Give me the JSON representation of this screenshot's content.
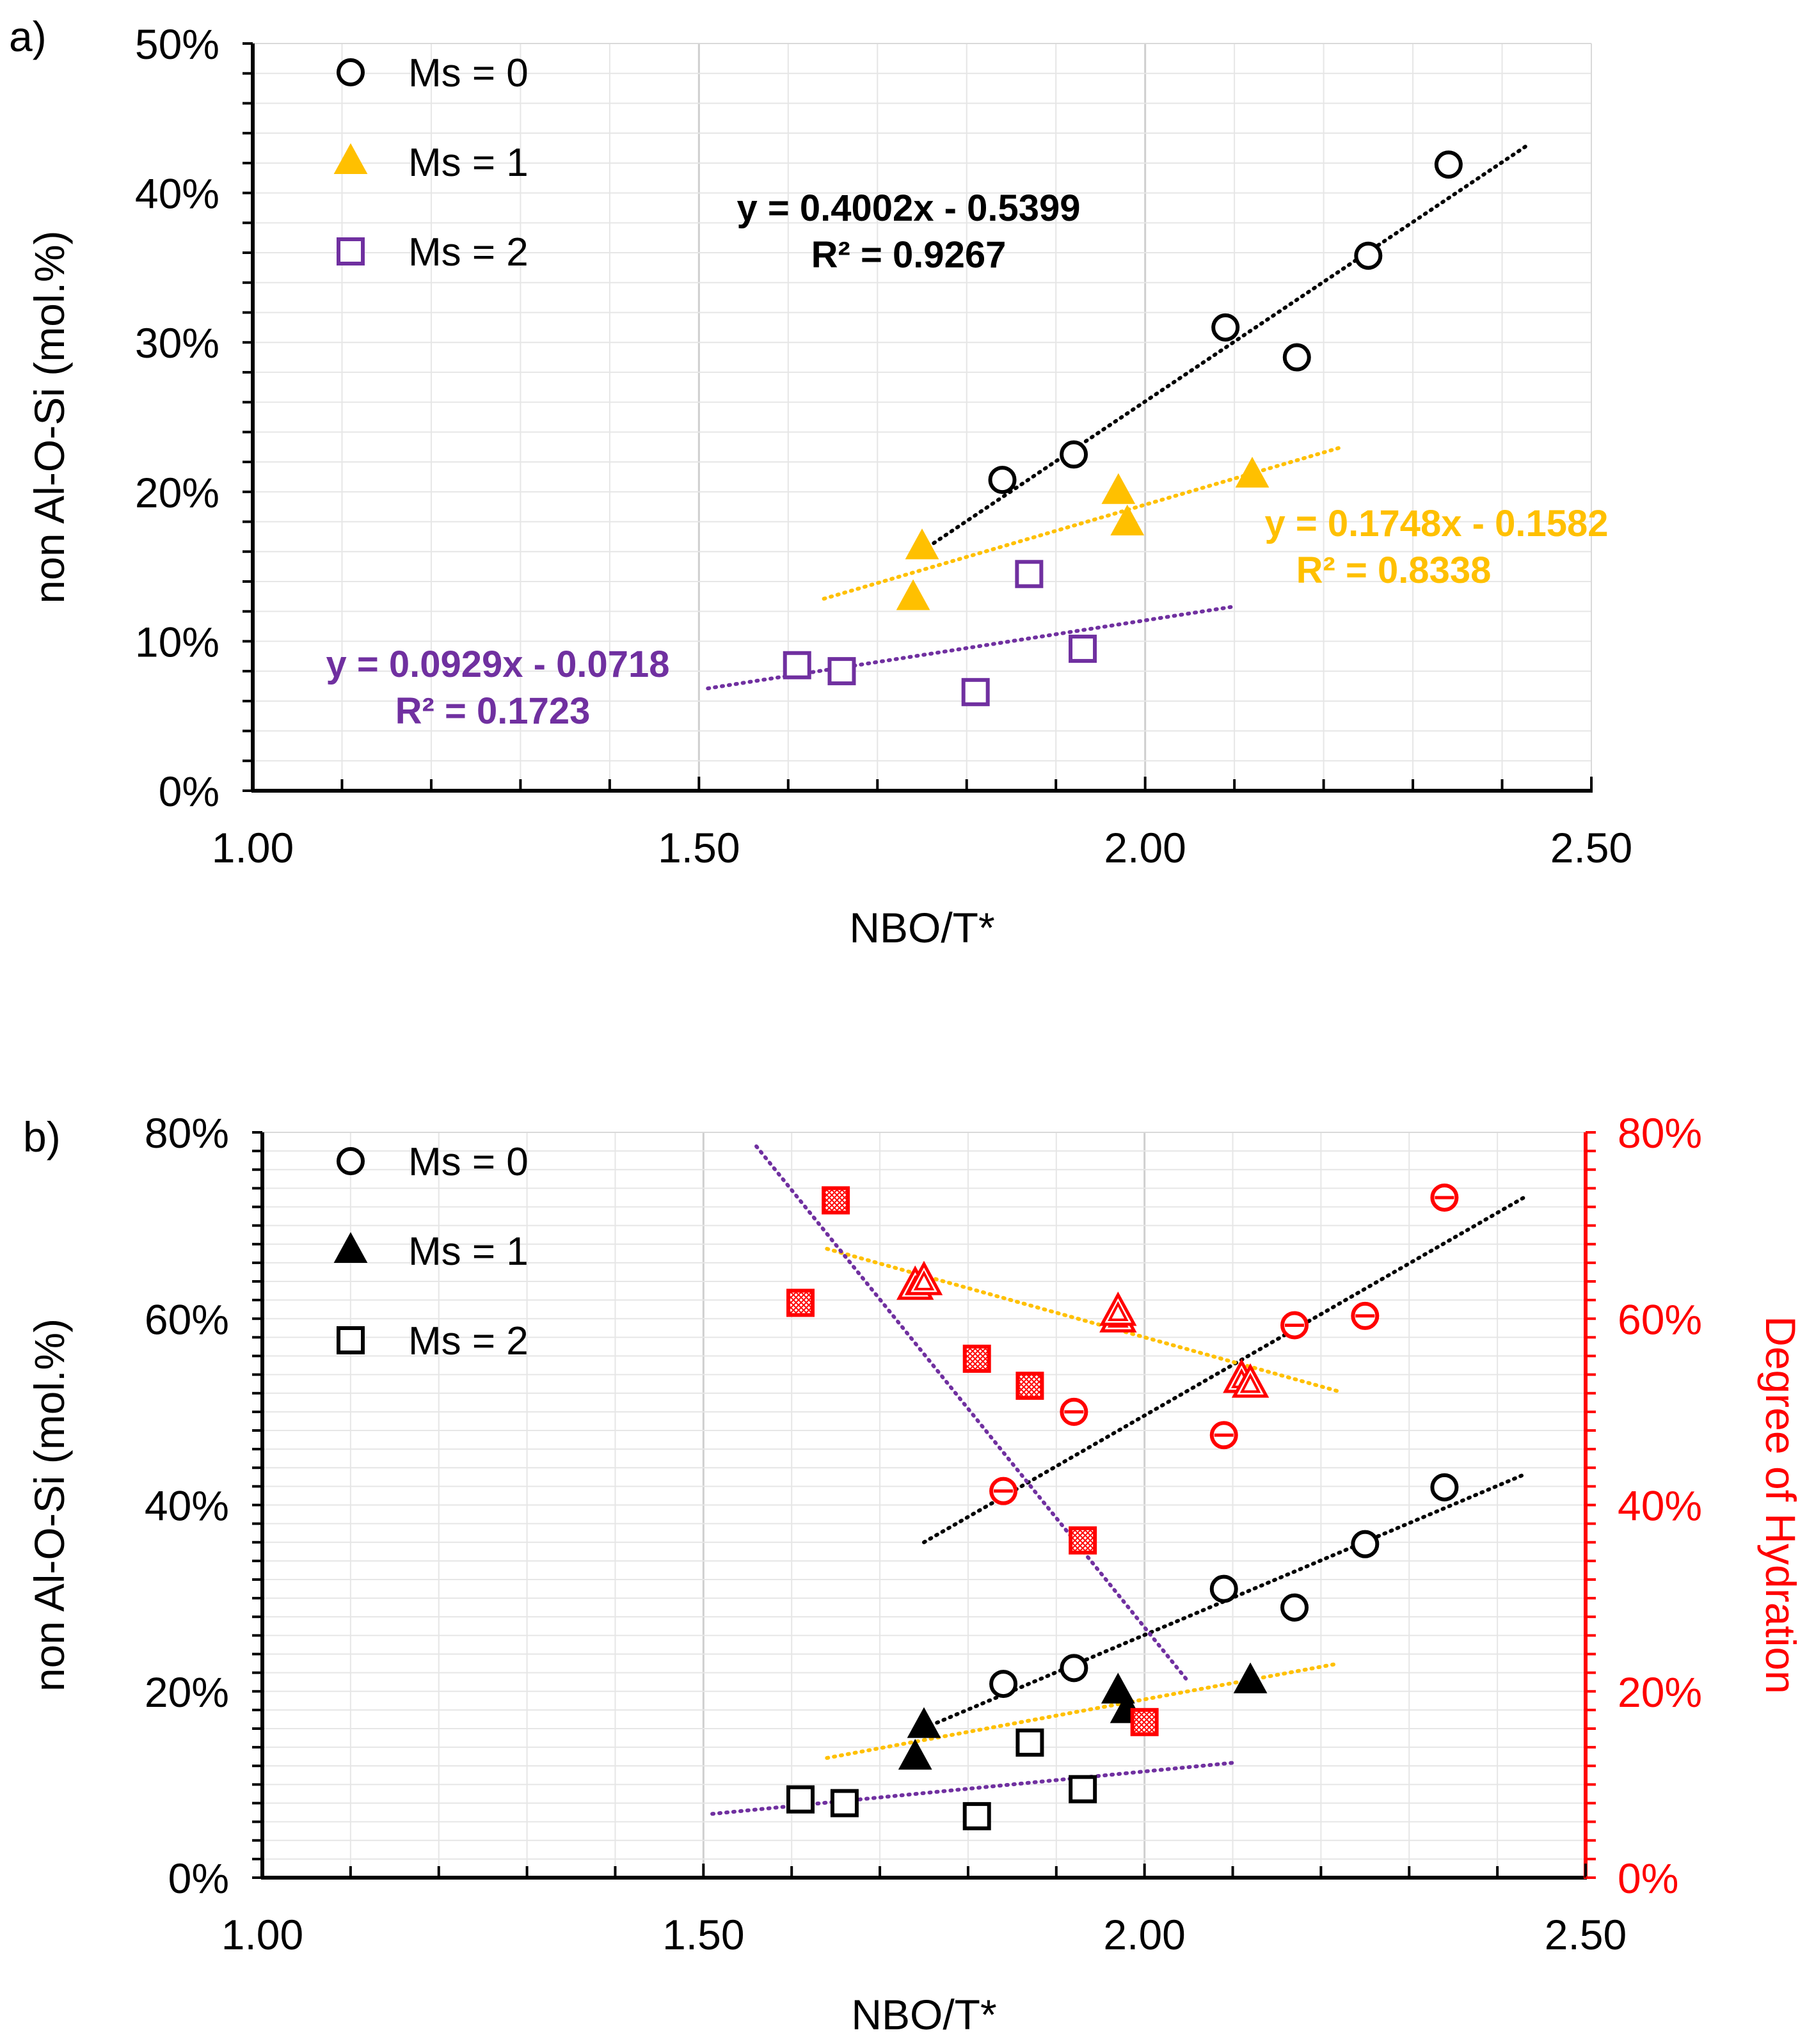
{
  "chart_data": [
    {
      "panel": "a)",
      "type": "scatter",
      "xlabel": "NBO/T*",
      "ylabel": "non Al-O-Si (mol.%)",
      "xlim": [
        1.0,
        2.5
      ],
      "ylim": [
        0,
        0.5
      ],
      "x_ticks": [
        "1.00",
        "1.50",
        "2.00",
        "2.50"
      ],
      "y_ticks": [
        "0%",
        "10%",
        "20%",
        "30%",
        "40%",
        "50%"
      ],
      "grid": true,
      "legend": "top-left",
      "series": [
        {
          "name": "Ms = 0",
          "marker": "circle",
          "color": "#000000",
          "fill": "none",
          "points": [
            [
              1.84,
              0.208
            ],
            [
              1.92,
              0.225
            ],
            [
              2.09,
              0.31
            ],
            [
              2.17,
              0.29
            ],
            [
              2.25,
              0.358
            ],
            [
              2.34,
              0.419
            ]
          ]
        },
        {
          "name": "Ms = 1",
          "marker": "triangle",
          "color": "#FFC000",
          "fill": "#FFC000",
          "points": [
            [
              1.75,
              0.163
            ],
            [
              1.74,
              0.129
            ],
            [
              1.97,
              0.2
            ],
            [
              1.98,
              0.179
            ],
            [
              2.12,
              0.211
            ]
          ]
        },
        {
          "name": "Ms = 2",
          "marker": "square",
          "color": "#7030A0",
          "fill": "none",
          "points": [
            [
              1.61,
              0.084
            ],
            [
              1.66,
              0.08
            ],
            [
              1.81,
              0.066
            ],
            [
              1.87,
              0.145
            ],
            [
              1.93,
              0.095
            ]
          ]
        }
      ],
      "trendlines": [
        {
          "series": "Ms = 0",
          "color": "#000000",
          "x_range": [
            1.75,
            2.43
          ],
          "slope": 0.4002,
          "intercept": -0.5399,
          "equation": "y = 0.4002x - 0.5399",
          "r2": "R² = 0.9267"
        },
        {
          "series": "Ms = 1",
          "color": "#FFC000",
          "x_range": [
            1.64,
            2.22
          ],
          "slope": 0.1748,
          "intercept": -0.1582,
          "equation": "y = 0.1748x - 0.1582",
          "r2": "R² = 0.8338"
        },
        {
          "series": "Ms = 2",
          "color": "#7030A0",
          "x_range": [
            1.51,
            2.1
          ],
          "slope": 0.0929,
          "intercept": -0.0718,
          "equation": "y = 0.0929x - 0.0718",
          "r2": "R² = 0.1723"
        }
      ]
    },
    {
      "panel": "b)",
      "type": "scatter",
      "xlabel": "NBO/T*",
      "ylabel": "non Al-O-Si (mol.%)",
      "y2label": "Degree of Hydration",
      "xlim": [
        1.0,
        2.5
      ],
      "ylim": [
        0,
        0.8
      ],
      "y2lim": [
        0,
        0.8
      ],
      "x_ticks": [
        "1.00",
        "1.50",
        "2.00",
        "2.50"
      ],
      "y_ticks": [
        "0%",
        "20%",
        "40%",
        "60%",
        "80%"
      ],
      "y2_ticks": [
        "0%",
        "20%",
        "40%",
        "60%",
        "80%"
      ],
      "grid": true,
      "legend": "top-left",
      "series": [
        {
          "name": "Ms = 0",
          "marker": "circle",
          "color": "#000000",
          "fill": "none",
          "axis": "left",
          "points": [
            [
              1.84,
              0.208
            ],
            [
              1.92,
              0.225
            ],
            [
              2.09,
              0.31
            ],
            [
              2.17,
              0.29
            ],
            [
              2.25,
              0.358
            ],
            [
              2.34,
              0.419
            ]
          ]
        },
        {
          "name": "Ms = 1",
          "marker": "triangle",
          "color": "#000000",
          "fill": "#000000",
          "axis": "left",
          "points": [
            [
              1.75,
              0.163
            ],
            [
              1.74,
              0.129
            ],
            [
              1.97,
              0.2
            ],
            [
              1.98,
              0.179
            ],
            [
              2.12,
              0.211
            ]
          ]
        },
        {
          "name": "Ms = 2",
          "marker": "square",
          "color": "#000000",
          "fill": "none",
          "axis": "left",
          "points": [
            [
              1.61,
              0.084
            ],
            [
              1.66,
              0.08
            ],
            [
              1.81,
              0.066
            ],
            [
              1.87,
              0.145
            ],
            [
              1.93,
              0.095
            ]
          ]
        },
        {
          "name": "Ms = 0 hydration",
          "marker": "circle-bar",
          "color": "#FF0000",
          "axis": "right",
          "legend": false,
          "points": [
            [
              1.84,
              0.415
            ],
            [
              1.92,
              0.5
            ],
            [
              2.09,
              0.475
            ],
            [
              2.17,
              0.593
            ],
            [
              2.25,
              0.603
            ],
            [
              2.34,
              0.73
            ]
          ]
        },
        {
          "name": "Ms = 1 hydration",
          "marker": "triangle-double",
          "color": "#FF0000",
          "axis": "right",
          "legend": false,
          "points": [
            [
              1.74,
              0.635
            ],
            [
              1.75,
              0.64
            ],
            [
              1.97,
              0.6
            ],
            [
              1.97,
              0.607
            ],
            [
              2.11,
              0.535
            ],
            [
              2.12,
              0.53
            ]
          ]
        },
        {
          "name": "Ms = 2 hydration",
          "marker": "square-hatched",
          "color": "#FF0000",
          "axis": "right",
          "legend": false,
          "points": [
            [
              1.61,
              0.617
            ],
            [
              1.65,
              0.727
            ],
            [
              1.81,
              0.557
            ],
            [
              1.87,
              0.528
            ],
            [
              1.93,
              0.362
            ],
            [
              2.0,
              0.167
            ]
          ]
        }
      ],
      "trendlines": [
        {
          "series": "Ms = 0",
          "color": "#000000",
          "axis": "left",
          "x_range": [
            1.75,
            2.43
          ],
          "slope": 0.4002,
          "intercept": -0.5399
        },
        {
          "series": "Ms = 1",
          "color": "#FFC000",
          "axis": "left",
          "x_range": [
            1.64,
            2.22
          ],
          "slope": 0.1748,
          "intercept": -0.1582
        },
        {
          "series": "Ms = 2",
          "color": "#7030A0",
          "axis": "left",
          "x_range": [
            1.51,
            2.1
          ],
          "slope": 0.0929,
          "intercept": -0.0718
        },
        {
          "series": "Ms = 0 hydration",
          "color": "#000000",
          "axis": "right",
          "x_range": [
            1.75,
            2.43
          ],
          "y_range": [
            0.36,
            0.73
          ]
        },
        {
          "series": "Ms = 1 hydration",
          "color": "#FFC000",
          "axis": "right",
          "x_range": [
            1.64,
            2.22
          ],
          "y_range": [
            0.675,
            0.522
          ]
        },
        {
          "series": "Ms = 2 hydration",
          "color": "#7030A0",
          "axis": "right",
          "x_range": [
            1.56,
            2.05
          ],
          "y_range": [
            0.785,
            0.21
          ]
        }
      ]
    }
  ]
}
